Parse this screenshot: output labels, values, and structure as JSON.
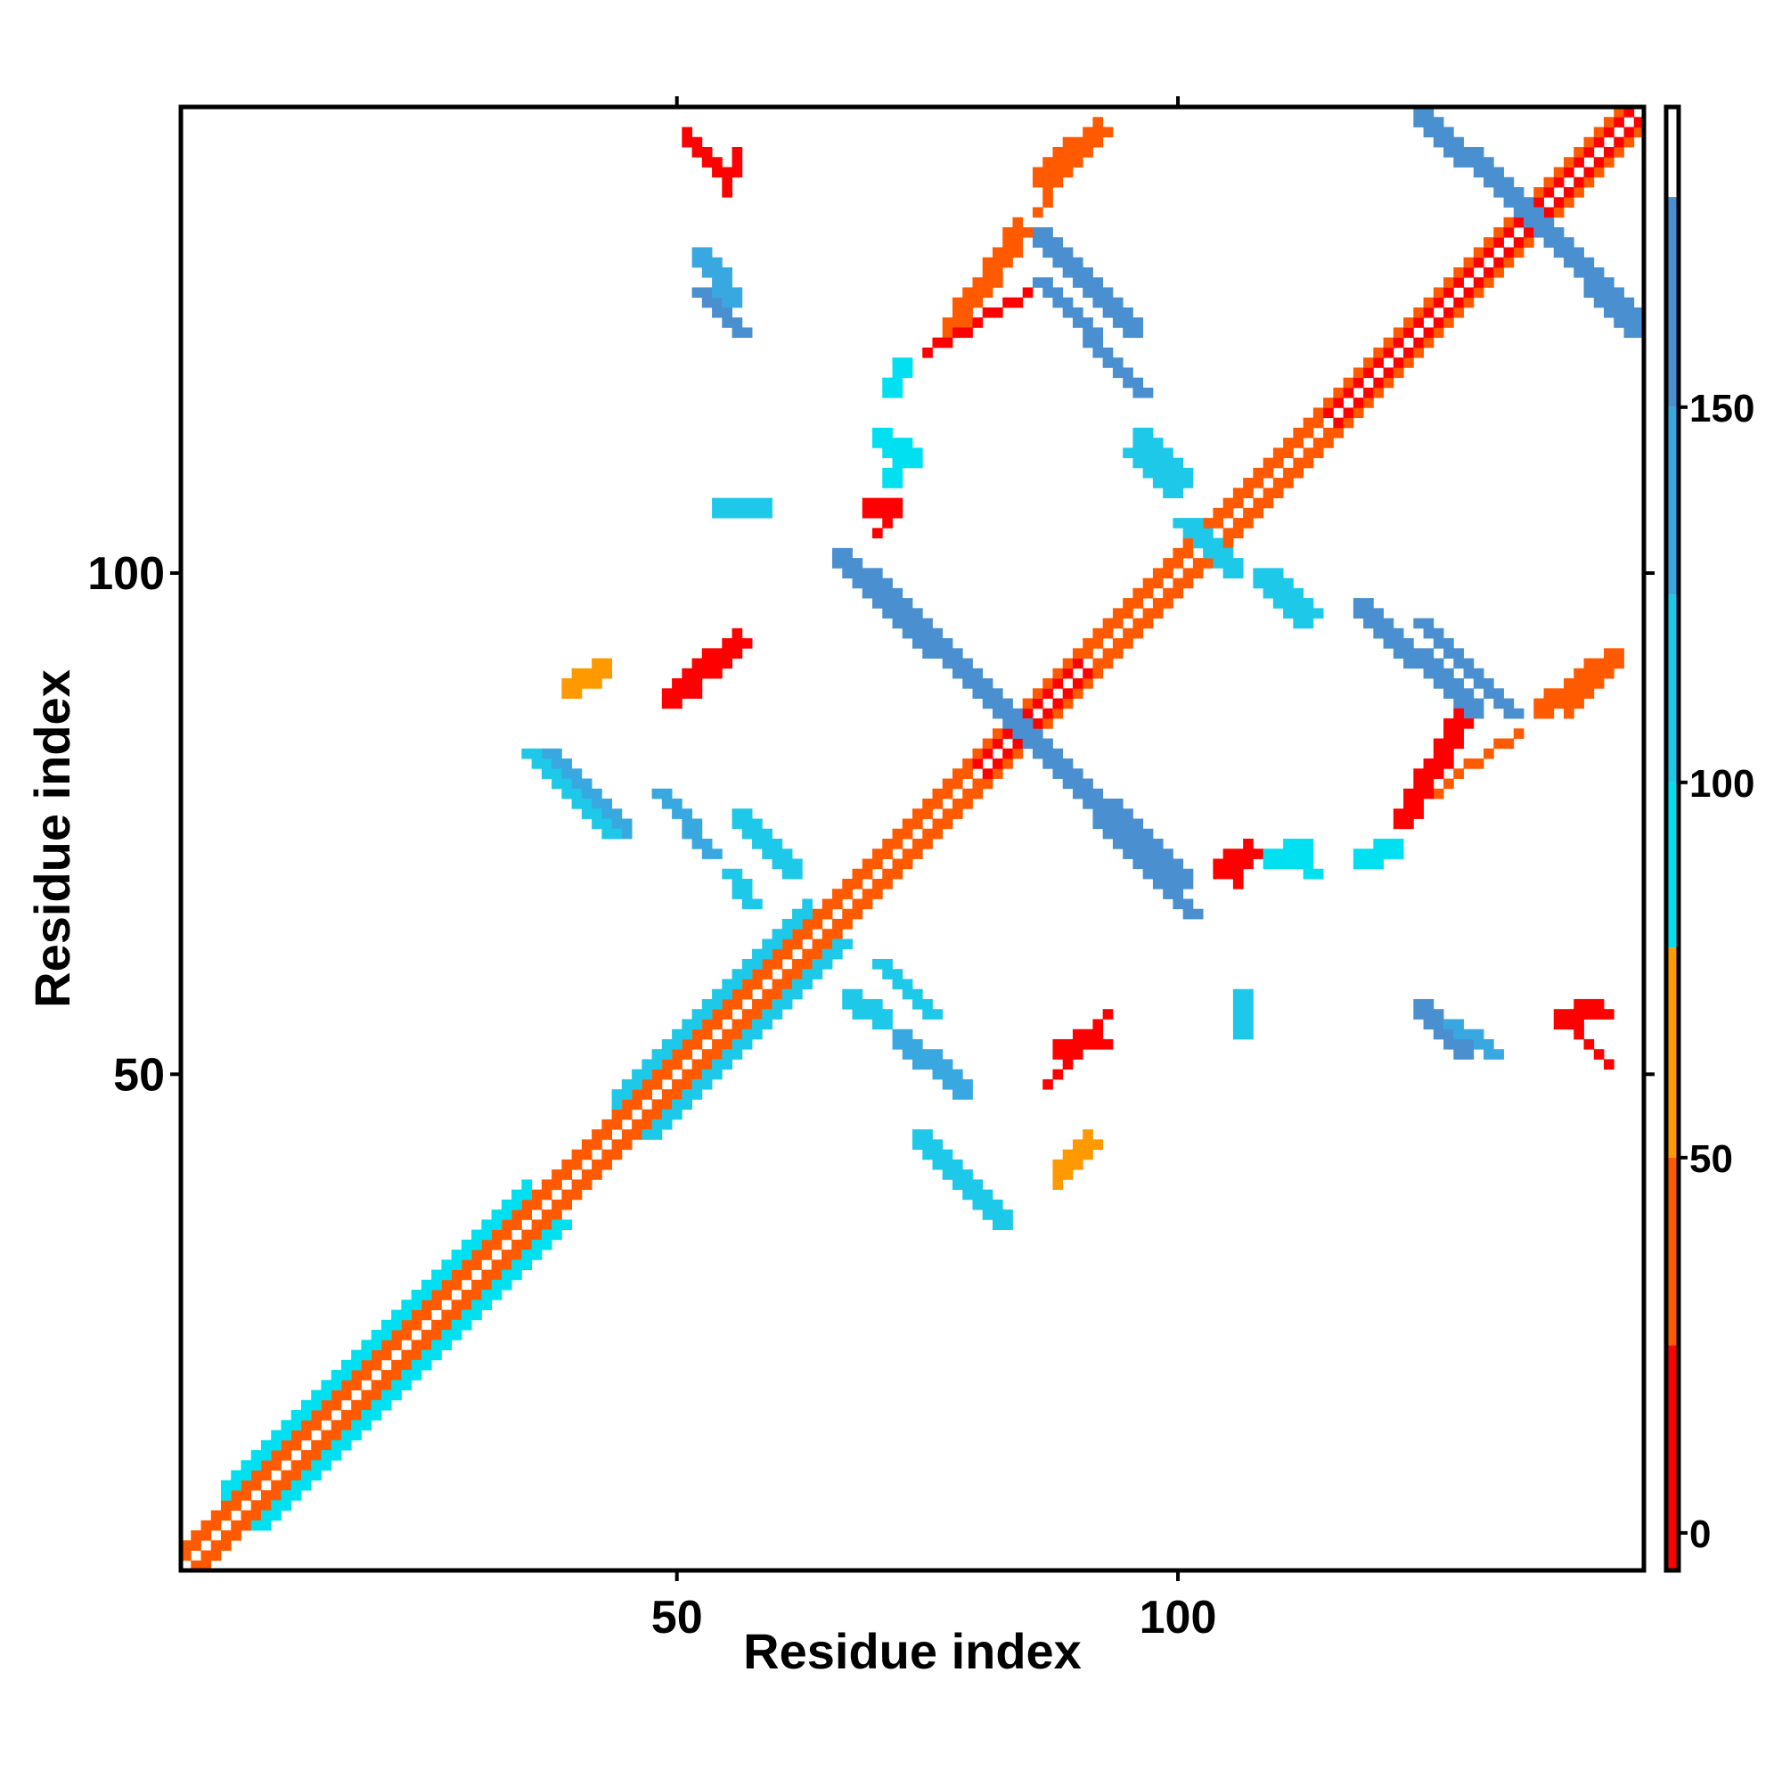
{
  "chart_data": {
    "type": "heatmap",
    "title": "",
    "xlabel": "Residue index",
    "ylabel": "Residue index",
    "x_range": [
      1,
      146
    ],
    "y_range": [
      1,
      146
    ],
    "x_ticks": [
      50,
      100
    ],
    "y_ticks": [
      50,
      100
    ],
    "colorbar": {
      "range": [
        -5,
        190
      ],
      "ticks": [
        0,
        50,
        100,
        150
      ],
      "bands": [
        {
          "from": -5,
          "to": 25,
          "color": "#ff0000"
        },
        {
          "from": 25,
          "to": 50,
          "color": "#ff5a00"
        },
        {
          "from": 50,
          "to": 78,
          "color": "#ff9900"
        },
        {
          "from": 78,
          "to": 100,
          "color": "#00e0f0"
        },
        {
          "from": 100,
          "to": 125,
          "color": "#1ec8e8"
        },
        {
          "from": 125,
          "to": 150,
          "color": "#3aa8e0"
        },
        {
          "from": 150,
          "to": 178,
          "color": "#4a8fd0"
        },
        {
          "from": 178,
          "to": 190,
          "color": "#ffffff"
        }
      ]
    },
    "features": [
      {
        "name": "diagonal band",
        "kind": "diagonal",
        "from": 1,
        "to": 146,
        "value": 40,
        "color": "#ff5a00"
      },
      {
        "name": "diagonal helix band",
        "kind": "diagonal",
        "from": 44,
        "to": 63,
        "value": 110,
        "color": "#1ec8e8"
      },
      {
        "name": "diagonal helix band 2",
        "kind": "diagonal",
        "from": 5,
        "to": 35,
        "value": 100,
        "color": "#00e0f0"
      },
      {
        "name": "diagonal red 1",
        "kind": "diagonal",
        "from": 80,
        "to": 90,
        "value": 10,
        "color": "#ff0000"
      },
      {
        "name": "diagonal red 2",
        "kind": "diagonal",
        "from": 115,
        "to": 146,
        "value": 10,
        "color": "#ff0000"
      },
      {
        "name": "cross strand A1",
        "kind": "segment",
        "x1": 85,
        "y1": 83,
        "x2": 100,
        "y2": 69,
        "value": 150,
        "color": "#4a8fd0"
      },
      {
        "name": "cross strand A2",
        "kind": "segment",
        "x1": 85,
        "y1": 83,
        "x2": 66,
        "y2": 101,
        "value": 150,
        "color": "#4a8fd0"
      },
      {
        "name": "cross strand B1",
        "kind": "segment",
        "x1": 133,
        "y1": 137,
        "x2": 146,
        "y2": 124,
        "value": 160,
        "color": "#4a8fd0"
      },
      {
        "name": "cross strand B2",
        "kind": "segment",
        "x1": 133,
        "y1": 137,
        "x2": 124,
        "y2": 145,
        "value": 160,
        "color": "#4a8fd0"
      },
      {
        "name": "strand C",
        "kind": "segment",
        "x1": 86,
        "y1": 133,
        "x2": 95,
        "y2": 124,
        "value": 150,
        "color": "#4a8fd0"
      },
      {
        "name": "strand D",
        "kind": "segment",
        "x1": 118,
        "y1": 96,
        "x2": 129,
        "y2": 86,
        "value": 150,
        "color": "#4a8fd0"
      },
      {
        "name": "strand E",
        "kind": "segment",
        "x1": 37,
        "y1": 81,
        "x2": 44,
        "y2": 74,
        "value": 130,
        "color": "#3aa8e0"
      },
      {
        "name": "strand F",
        "kind": "segment",
        "x1": 74,
        "y1": 43,
        "x2": 82,
        "y2": 35,
        "value": 120,
        "color": "#1ec8e8"
      },
      {
        "name": "strand G",
        "kind": "segment",
        "x1": 96,
        "y1": 113,
        "x2": 100,
        "y2": 109,
        "value": 120,
        "color": "#1ec8e8"
      },
      {
        "name": "strand H",
        "kind": "segment",
        "x1": 101,
        "y1": 104,
        "x2": 105,
        "y2": 100,
        "value": 120,
        "color": "#1ec8e8"
      },
      {
        "name": "strand I",
        "kind": "segment",
        "x1": 108,
        "y1": 99,
        "x2": 112,
        "y2": 95,
        "value": 120,
        "color": "#1ec8e8"
      },
      {
        "name": "strand J",
        "kind": "segment",
        "x1": 56,
        "y1": 75,
        "x2": 61,
        "y2": 70,
        "value": 120,
        "color": "#1ec8e8"
      },
      {
        "name": "orange chain 1",
        "kind": "segment",
        "x1": 84,
        "y1": 134,
        "x2": 77,
        "y2": 124,
        "value": 40,
        "color": "#ff5a00"
      },
      {
        "name": "orange chain 2",
        "kind": "segment",
        "x1": 86,
        "y1": 139,
        "x2": 92,
        "y2": 144,
        "value": 40,
        "color": "#ff5a00"
      },
      {
        "name": "orange chain 3",
        "kind": "segment",
        "x1": 128,
        "y1": 85,
        "x2": 122,
        "y2": 75,
        "value": 20,
        "color": "#ff0000"
      },
      {
        "name": "orange chain 4",
        "kind": "segment",
        "x1": 136,
        "y1": 86,
        "x2": 143,
        "y2": 91,
        "value": 40,
        "color": "#ff5a00"
      },
      {
        "name": "red chain 5",
        "kind": "segment",
        "x1": 104,
        "y1": 70,
        "x2": 107,
        "y2": 72,
        "value": 10,
        "color": "#ff0000"
      },
      {
        "name": "helix blob 1",
        "kind": "segment",
        "x1": 67,
        "y1": 57,
        "x2": 70,
        "y2": 55,
        "value": 110,
        "color": "#1ec8e8"
      },
      {
        "name": "helix blob 2",
        "kind": "segment",
        "x1": 72,
        "y1": 53,
        "x2": 78,
        "y2": 48,
        "value": 130,
        "color": "#3aa8e0"
      },
      {
        "name": "helix blob 3",
        "kind": "segment",
        "x1": 124,
        "y1": 56,
        "x2": 128,
        "y2": 52,
        "value": 140,
        "color": "#4a8fd0"
      },
      {
        "name": "helix blob 4",
        "kind": "segment",
        "x1": 52,
        "y1": 131,
        "x2": 55,
        "y2": 127,
        "value": 130,
        "color": "#3aa8e0"
      },
      {
        "name": "red patch 1",
        "kind": "segment",
        "x1": 51,
        "y1": 143,
        "x2": 54,
        "y2": 140,
        "value": 20,
        "color": "#ff0000"
      },
      {
        "name": "red patch 2",
        "kind": "segment",
        "x1": 49,
        "y1": 87,
        "x2": 56,
        "y2": 93,
        "value": 20,
        "color": "#ff0000"
      },
      {
        "name": "orange patch 3",
        "kind": "segment",
        "x1": 39,
        "y1": 88,
        "x2": 42,
        "y2": 90,
        "value": 60,
        "color": "#ff9900"
      },
      {
        "name": "red patch 4",
        "kind": "segment",
        "x1": 88,
        "y1": 52,
        "x2": 92,
        "y2": 53,
        "value": 10,
        "color": "#ff0000"
      },
      {
        "name": "orange patch 5",
        "kind": "segment",
        "x1": 88,
        "y1": 40,
        "x2": 91,
        "y2": 43,
        "value": 60,
        "color": "#ff9900"
      },
      {
        "name": "red patch 6",
        "kind": "segment",
        "x1": 138,
        "y1": 55,
        "x2": 142,
        "y2": 56,
        "value": 10,
        "color": "#ff0000"
      },
      {
        "name": "small cyan 1",
        "kind": "segment",
        "x1": 70,
        "y1": 113,
        "x2": 73,
        "y2": 111,
        "value": 100,
        "color": "#00e0f0"
      },
      {
        "name": "small cyan 2",
        "kind": "segment",
        "x1": 54,
        "y1": 106,
        "x2": 58,
        "y2": 106,
        "value": 120,
        "color": "#1ec8e8"
      },
      {
        "name": "small cyan 3",
        "kind": "segment",
        "x1": 109,
        "y1": 71,
        "x2": 112,
        "y2": 72,
        "value": 100,
        "color": "#00e0f0"
      },
      {
        "name": "small cyan 4",
        "kind": "segment",
        "x1": 118,
        "y1": 71,
        "x2": 121,
        "y2": 72,
        "value": 100,
        "color": "#00e0f0"
      },
      {
        "name": "small red 5",
        "kind": "segment",
        "x1": 69,
        "y1": 106,
        "x2": 71,
        "y2": 106,
        "value": 10,
        "color": "#ff0000"
      }
    ]
  }
}
